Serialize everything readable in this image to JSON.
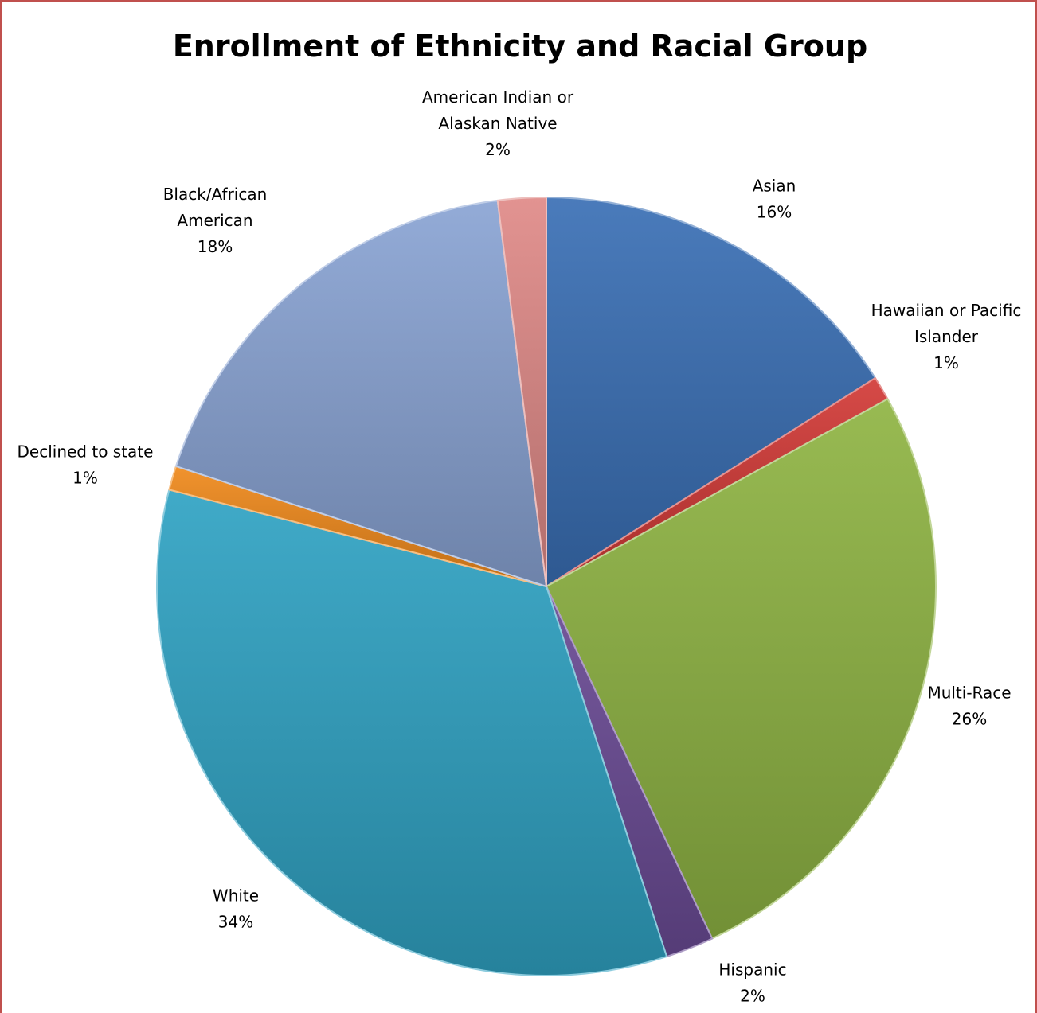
{
  "chart_data": {
    "type": "pie",
    "title": "Enrollment of Ethnicity and Racial Group",
    "categories": [
      "Asian",
      "Hawaiian or Pacific Islander",
      "Multi-Race",
      "Hispanic",
      "White",
      "Declined to state",
      "Black/African American",
      "American Indian or Alaskan Native"
    ],
    "values": [
      16,
      1,
      26,
      2,
      34,
      1,
      18,
      2
    ],
    "data_labels": [
      [
        "Asian",
        "16%"
      ],
      [
        "Hawaiian or Pacific",
        "Islander",
        "1%"
      ],
      [
        "Multi-Race",
        "26%"
      ],
      [
        "Hispanic",
        "2%"
      ],
      [
        "White",
        "34%"
      ],
      [
        "Declined to state",
        "1%"
      ],
      [
        "Black/African",
        "American",
        "18%"
      ],
      [
        "American Indian or",
        "Alaskan Native",
        "2%"
      ]
    ],
    "colors": [
      "#3a6fb5",
      "#d23a37",
      "#8fb443",
      "#6a4b95",
      "#2fa3c3",
      "#f08a1c",
      "#8aa4d4",
      "#df8a87"
    ],
    "start_angle_deg": 0,
    "direction": "clockwise",
    "legend": "none"
  }
}
